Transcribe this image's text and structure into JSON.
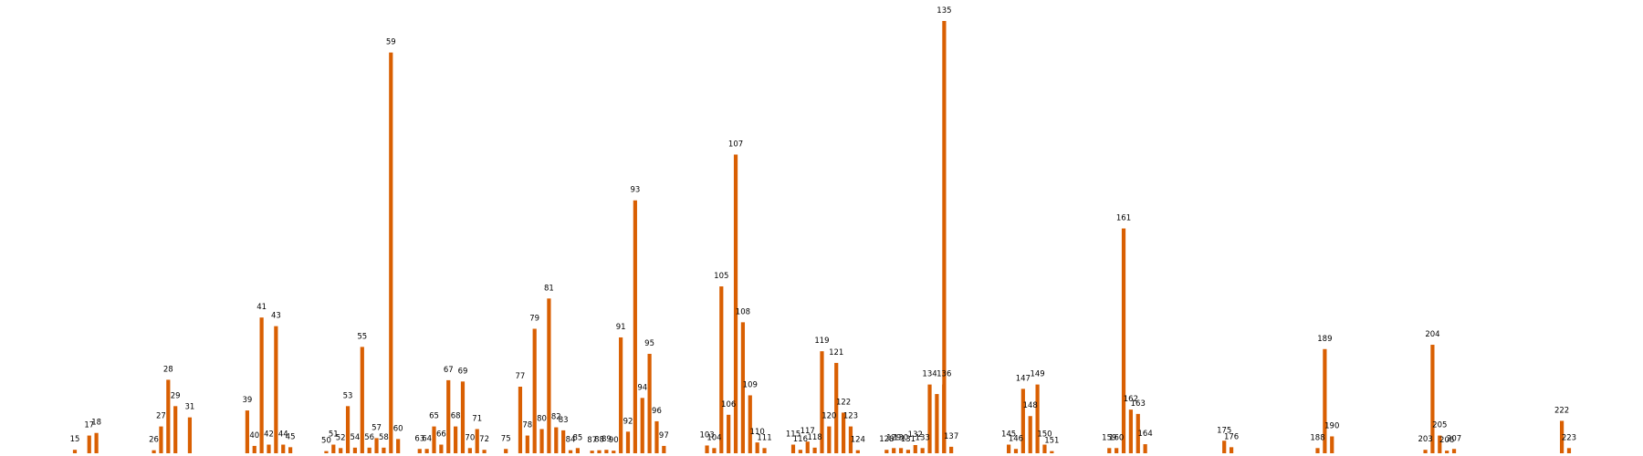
{
  "chart_data": {
    "type": "bar",
    "title": "",
    "xlabel": "",
    "ylabel": "",
    "grid": false,
    "axes_visible": false,
    "bar_color": "#d95f02",
    "label_color": "#000000",
    "background": "#ffffff",
    "ylim": [
      0,
      1000
    ],
    "labels_above_bars": true,
    "x_positions_note_removed": true,
    "bars": [
      {
        "id": 15,
        "value": 8
      },
      {
        "id": 17,
        "value": 41
      },
      {
        "id": 18,
        "value": 47
      },
      {
        "id": 26,
        "value": 7
      },
      {
        "id": 27,
        "value": 62
      },
      {
        "id": 28,
        "value": 170
      },
      {
        "id": 29,
        "value": 109
      },
      {
        "id": 31,
        "value": 83
      },
      {
        "id": 39,
        "value": 99
      },
      {
        "id": 40,
        "value": 17
      },
      {
        "id": 41,
        "value": 314
      },
      {
        "id": 42,
        "value": 20
      },
      {
        "id": 43,
        "value": 294
      },
      {
        "id": 44,
        "value": 20
      },
      {
        "id": 45,
        "value": 14
      },
      {
        "id": 50,
        "value": 5
      },
      {
        "id": 51,
        "value": 20
      },
      {
        "id": 52,
        "value": 12
      },
      {
        "id": 53,
        "value": 109
      },
      {
        "id": 54,
        "value": 13
      },
      {
        "id": 55,
        "value": 246
      },
      {
        "id": 56,
        "value": 13
      },
      {
        "id": 57,
        "value": 35
      },
      {
        "id": 58,
        "value": 13
      },
      {
        "id": 59,
        "value": 927
      },
      {
        "id": 60,
        "value": 33
      },
      {
        "id": 63,
        "value": 10
      },
      {
        "id": 64,
        "value": 10
      },
      {
        "id": 65,
        "value": 62
      },
      {
        "id": 66,
        "value": 20
      },
      {
        "id": 67,
        "value": 169
      },
      {
        "id": 68,
        "value": 62
      },
      {
        "id": 69,
        "value": 166
      },
      {
        "id": 70,
        "value": 12
      },
      {
        "id": 71,
        "value": 56
      },
      {
        "id": 72,
        "value": 8
      },
      {
        "id": 75,
        "value": 10
      },
      {
        "id": 77,
        "value": 154
      },
      {
        "id": 78,
        "value": 41
      },
      {
        "id": 79,
        "value": 288
      },
      {
        "id": 80,
        "value": 56
      },
      {
        "id": 81,
        "value": 358
      },
      {
        "id": 82,
        "value": 60
      },
      {
        "id": 83,
        "value": 53
      },
      {
        "id": 84,
        "value": 7
      },
      {
        "id": 85,
        "value": 12
      },
      {
        "id": 87,
        "value": 6
      },
      {
        "id": 88,
        "value": 7
      },
      {
        "id": 89,
        "value": 8
      },
      {
        "id": 90,
        "value": 6
      },
      {
        "id": 91,
        "value": 268
      },
      {
        "id": 92,
        "value": 50
      },
      {
        "id": 93,
        "value": 585
      },
      {
        "id": 94,
        "value": 128
      },
      {
        "id": 95,
        "value": 230
      },
      {
        "id": 96,
        "value": 74
      },
      {
        "id": 97,
        "value": 17
      },
      {
        "id": 103,
        "value": 18
      },
      {
        "id": 104,
        "value": 12
      },
      {
        "id": 105,
        "value": 386
      },
      {
        "id": 106,
        "value": 89
      },
      {
        "id": 107,
        "value": 691
      },
      {
        "id": 108,
        "value": 303
      },
      {
        "id": 109,
        "value": 134
      },
      {
        "id": 110,
        "value": 25
      },
      {
        "id": 111,
        "value": 12
      },
      {
        "id": 115,
        "value": 20
      },
      {
        "id": 116,
        "value": 8
      },
      {
        "id": 117,
        "value": 27
      },
      {
        "id": 118,
        "value": 13
      },
      {
        "id": 119,
        "value": 236
      },
      {
        "id": 120,
        "value": 62
      },
      {
        "id": 121,
        "value": 209
      },
      {
        "id": 122,
        "value": 94
      },
      {
        "id": 123,
        "value": 62
      },
      {
        "id": 124,
        "value": 7
      },
      {
        "id": 128,
        "value": 8
      },
      {
        "id": 129,
        "value": 12
      },
      {
        "id": 130,
        "value": 12
      },
      {
        "id": 131,
        "value": 8
      },
      {
        "id": 132,
        "value": 19
      },
      {
        "id": 133,
        "value": 12
      },
      {
        "id": 134,
        "value": 159
      },
      {
        "id": 135,
        "value": 137
      },
      {
        "id": 135,
        "value": 1000
      },
      {
        "id": 136,
        "value": 159
      },
      {
        "id": 137,
        "value": 15
      },
      {
        "id": 145,
        "value": 20
      },
      {
        "id": 146,
        "value": 10
      },
      {
        "id": 147,
        "value": 149
      },
      {
        "id": 148,
        "value": 86
      },
      {
        "id": 149,
        "value": 159
      },
      {
        "id": 150,
        "value": 20
      },
      {
        "id": 151,
        "value": 5
      },
      {
        "id": 159,
        "value": 12
      },
      {
        "id": 160,
        "value": 12
      },
      {
        "id": 161,
        "value": 520
      },
      {
        "id": 162,
        "value": 101
      },
      {
        "id": 163,
        "value": 91
      },
      {
        "id": 164,
        "value": 21
      },
      {
        "id": 175,
        "value": 29
      },
      {
        "id": 176,
        "value": 14
      },
      {
        "id": 188,
        "value": 12
      },
      {
        "id": 189,
        "value": 241
      },
      {
        "id": 190,
        "value": 39
      },
      {
        "id": 203,
        "value": 8
      },
      {
        "id": 204,
        "value": 251
      },
      {
        "id": 205,
        "value": 41
      },
      {
        "id": 206,
        "value": 6
      },
      {
        "id": 207,
        "value": 10
      },
      {
        "id": 222,
        "value": 75
      },
      {
        "id": 223,
        "value": 12
      }
    ],
    "labels": [
      {
        "text": "15",
        "bar": 0
      },
      {
        "text": "17",
        "bar": 1
      },
      {
        "text": "18",
        "bar": 2
      },
      {
        "text": "26",
        "bar": 3
      },
      {
        "text": "27",
        "bar": 4
      },
      {
        "text": "28",
        "bar": 5
      },
      {
        "text": "29",
        "bar": 6
      },
      {
        "text": "31",
        "bar": 7
      },
      {
        "text": "39",
        "bar": 8
      },
      {
        "text": "40",
        "bar": 9
      },
      {
        "text": "41",
        "bar": 10
      },
      {
        "text": "42",
        "bar": 11
      },
      {
        "text": "43",
        "bar": 12
      },
      {
        "text": "44",
        "bar": 13
      },
      {
        "text": "45",
        "bar": 14
      },
      {
        "text": "50",
        "bar": 15
      },
      {
        "text": "51",
        "bar": 16
      },
      {
        "text": "52",
        "bar": 17
      },
      {
        "text": "53",
        "bar": 18
      },
      {
        "text": "54",
        "bar": 19
      },
      {
        "text": "55",
        "bar": 20
      },
      {
        "text": "56",
        "bar": 21
      },
      {
        "text": "57",
        "bar": 22
      },
      {
        "text": "58",
        "bar": 23
      },
      {
        "text": "59",
        "bar": 24
      },
      {
        "text": "60",
        "bar": 25
      },
      {
        "text": "63",
        "bar": 26
      },
      {
        "text": "64",
        "bar": 27
      },
      {
        "text": "65",
        "bar": 28
      },
      {
        "text": "66",
        "bar": 29
      },
      {
        "text": "67",
        "bar": 30
      },
      {
        "text": "68",
        "bar": 31
      },
      {
        "text": "69",
        "bar": 32
      },
      {
        "text": "70",
        "bar": 33
      },
      {
        "text": "71",
        "bar": 34
      },
      {
        "text": "72",
        "bar": 35
      },
      {
        "text": "75",
        "bar": 36
      },
      {
        "text": "77",
        "bar": 37
      },
      {
        "text": "78",
        "bar": 38
      },
      {
        "text": "79",
        "bar": 39
      },
      {
        "text": "80",
        "bar": 40
      },
      {
        "text": "81",
        "bar": 41
      },
      {
        "text": "82",
        "bar": 42
      },
      {
        "text": "83",
        "bar": 43
      },
      {
        "text": "84",
        "bar": 44
      },
      {
        "text": "85",
        "bar": 45
      },
      {
        "text": "87",
        "bar": 46
      },
      {
        "text": "88",
        "bar": 47
      },
      {
        "text": "89",
        "bar": 48
      },
      {
        "text": "90",
        "bar": 49
      },
      {
        "text": "91",
        "bar": 50
      },
      {
        "text": "92",
        "bar": 51
      },
      {
        "text": "93",
        "bar": 52
      },
      {
        "text": "94",
        "bar": 53
      },
      {
        "text": "95",
        "bar": 54
      },
      {
        "text": "96",
        "bar": 55
      },
      {
        "text": "97",
        "bar": 56
      },
      {
        "text": "103",
        "bar": 57
      },
      {
        "text": "104",
        "bar": 58
      },
      {
        "text": "105",
        "bar": 59
      },
      {
        "text": "106",
        "bar": 60
      },
      {
        "text": "107",
        "bar": 61
      },
      {
        "text": "108",
        "bar": 62
      },
      {
        "text": "109",
        "bar": 63
      },
      {
        "text": "110",
        "bar": 64
      },
      {
        "text": "111",
        "bar": 65
      },
      {
        "text": "115",
        "bar": 66
      },
      {
        "text": "116",
        "bar": 67
      },
      {
        "text": "117",
        "bar": 68
      },
      {
        "text": "118",
        "bar": 69
      },
      {
        "text": "119",
        "bar": 70
      },
      {
        "text": "120",
        "bar": 71
      },
      {
        "text": "121",
        "bar": 72
      },
      {
        "text": "122",
        "bar": 73
      },
      {
        "text": "123",
        "bar": 74
      },
      {
        "text": "124",
        "bar": 75
      },
      {
        "text": "128",
        "bar": 76
      },
      {
        "text": "129",
        "bar": 77
      },
      {
        "text": "130",
        "bar": 78
      },
      {
        "text": "131",
        "bar": 79
      },
      {
        "text": "132",
        "bar": 80
      },
      {
        "text": "133",
        "bar": 81
      },
      {
        "text": "134",
        "bar": 82
      },
      {
        "text": "135",
        "bar": 84
      },
      {
        "text": "136",
        "bar": 85
      },
      {
        "text": "137",
        "bar": 86
      },
      {
        "text": "145",
        "bar": 87
      },
      {
        "text": "146",
        "bar": 88
      },
      {
        "text": "147",
        "bar": 89
      },
      {
        "text": "148",
        "bar": 90
      },
      {
        "text": "149",
        "bar": 91
      },
      {
        "text": "150",
        "bar": 92
      },
      {
        "text": "151",
        "bar": 93
      },
      {
        "text": "159",
        "bar": 94
      },
      {
        "text": "160",
        "bar": 95
      },
      {
        "text": "161",
        "bar": 96
      },
      {
        "text": "162",
        "bar": 97
      },
      {
        "text": "163",
        "bar": 98
      },
      {
        "text": "164",
        "bar": 99
      },
      {
        "text": "175",
        "bar": 100
      },
      {
        "text": "176",
        "bar": 101
      },
      {
        "text": "188",
        "bar": 102
      },
      {
        "text": "189",
        "bar": 103
      },
      {
        "text": "190",
        "bar": 104
      },
      {
        "text": "203",
        "bar": 105
      },
      {
        "text": "204",
        "bar": 106
      },
      {
        "text": "205",
        "bar": 107
      },
      {
        "text": "206",
        "bar": 108
      },
      {
        "text": "207",
        "bar": 109
      },
      {
        "text": "222",
        "bar": 110
      },
      {
        "text": "223",
        "bar": 111
      }
    ]
  }
}
